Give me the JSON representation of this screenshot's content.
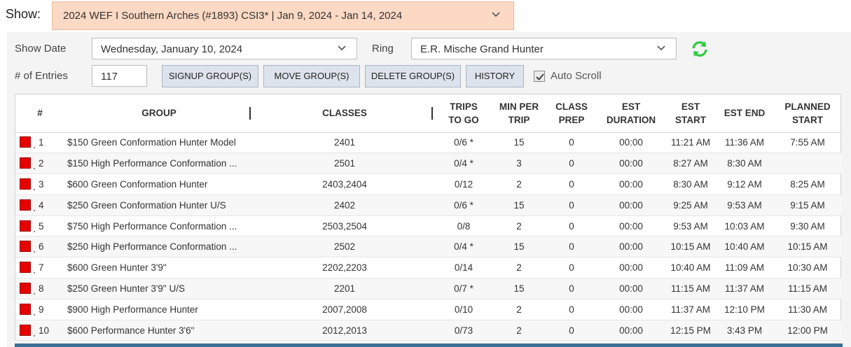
{
  "show": {
    "label": "Show:",
    "selected": "2024 WEF I Southern Arches (#1893) CSI3* | Jan 9, 2024 - Jan 14, 2024"
  },
  "filters": {
    "show_date_label": "Show Date",
    "show_date_value": "Wednesday, January 10, 2024",
    "ring_label": "Ring",
    "ring_value": "E.R. Mische Grand Hunter",
    "entries_label": "# of Entries",
    "entries_value": "117",
    "auto_scroll_label": "Auto Scroll",
    "auto_scroll_checked": true
  },
  "buttons": {
    "signup": "SIGNUP GROUP(S)",
    "move": "MOVE GROUP(S)",
    "delete": "DELETE GROUP(S)",
    "history": "HISTORY"
  },
  "table": {
    "headers": {
      "num": "#",
      "group": "GROUP",
      "classes": "CLASSES",
      "trips_1": "TRIPS",
      "trips_2": "TO GO",
      "min_1": "MIN PER",
      "min_2": "TRIP",
      "prep_1": "CLASS",
      "prep_2": "PREP",
      "dur_1": "EST",
      "dur_2": "DURATION",
      "start_1": "EST",
      "start_2": "START",
      "end": "EST END",
      "planned_1": "PLANNED",
      "planned_2": "START"
    },
    "rows": [
      {
        "num": "1",
        "group": "$150 Green Conformation Hunter Model",
        "classes": "2401",
        "trips": "0/6 *",
        "min": "15",
        "prep": "0",
        "dur": "00:00",
        "start": "11:21 AM",
        "end": "11:36 AM",
        "planned": "7:55 AM"
      },
      {
        "num": "2",
        "group": "$150 High Performance Conformation ...",
        "classes": "2501",
        "trips": "0/4 *",
        "min": "3",
        "prep": "0",
        "dur": "00:00",
        "start": "8:27 AM",
        "end": "8:30 AM",
        "planned": ""
      },
      {
        "num": "3",
        "group": "$600 Green Conformation Hunter",
        "classes": "2403,2404",
        "trips": "0/12",
        "min": "2",
        "prep": "0",
        "dur": "00:00",
        "start": "8:30 AM",
        "end": "9:12 AM",
        "planned": "8:25 AM"
      },
      {
        "num": "4",
        "group": "$250 Green Conformation Hunter U/S",
        "classes": "2402",
        "trips": "0/6 *",
        "min": "15",
        "prep": "0",
        "dur": "00:00",
        "start": "9:25 AM",
        "end": "9:53 AM",
        "planned": "9:15 AM"
      },
      {
        "num": "5",
        "group": "$750 High Performance Conformation ...",
        "classes": "2503,2504",
        "trips": "0/8",
        "min": "2",
        "prep": "0",
        "dur": "00:00",
        "start": "9:53 AM",
        "end": "10:03 AM",
        "planned": "9:30 AM"
      },
      {
        "num": "6",
        "group": "$250 High Performance Conformation ...",
        "classes": "2502",
        "trips": "0/4 *",
        "min": "15",
        "prep": "0",
        "dur": "00:00",
        "start": "10:15 AM",
        "end": "10:40 AM",
        "planned": "10:15 AM"
      },
      {
        "num": "7",
        "group": "$600 Green Hunter 3'9\"",
        "classes": "2202,2203",
        "trips": "0/14",
        "min": "2",
        "prep": "0",
        "dur": "00:00",
        "start": "10:40 AM",
        "end": "11:09 AM",
        "planned": "10:30 AM"
      },
      {
        "num": "8",
        "group": "$250 Green Hunter 3'9\" U/S",
        "classes": "2201",
        "trips": "0/7 *",
        "min": "15",
        "prep": "0",
        "dur": "00:00",
        "start": "11:15 AM",
        "end": "11:37 AM",
        "planned": "11:15 AM"
      },
      {
        "num": "9",
        "group": "$900 High Performance Hunter",
        "classes": "2007,2008",
        "trips": "0/10",
        "min": "2",
        "prep": "0",
        "dur": "00:00",
        "start": "11:37 AM",
        "end": "12:10 PM",
        "planned": "11:30 AM"
      },
      {
        "num": "10",
        "group": "$600 Performance Hunter 3'6\"",
        "classes": "2012,2013",
        "trips": "0/73",
        "min": "2",
        "prep": "0",
        "dur": "00:00",
        "start": "12:15 PM",
        "end": "3:43 PM",
        "planned": "12:00 PM"
      }
    ]
  },
  "colors": {
    "show_bg": "#fcd9c4",
    "status_square": "#e60000",
    "refresh_icon": "#2ecc40",
    "bottom_bar": "#3a6f96"
  }
}
